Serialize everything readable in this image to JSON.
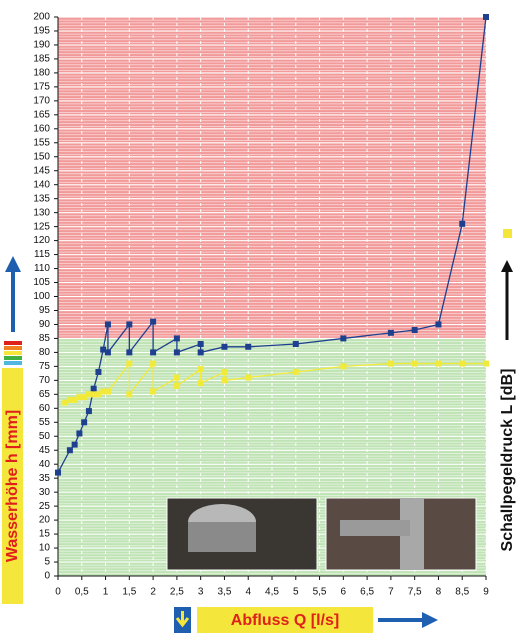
{
  "chart_data": {
    "type": "line",
    "y_label": "Wasserhöhe h [mm]",
    "y2_label": "Schallpegeldruck L [dB]",
    "x_label": "Abfluss Q [l/s]",
    "xlim": [
      0,
      9
    ],
    "ylim": [
      0,
      200
    ],
    "xticks": [
      0,
      {
        "value": 0.5,
        "label": "0,5"
      },
      1,
      {
        "value": 1.5,
        "label": "1,5"
      },
      2,
      {
        "value": 2.5,
        "label": "2,5"
      },
      3,
      {
        "value": 3.5,
        "label": "3,5"
      },
      4,
      {
        "value": 4.5,
        "label": "4,5"
      },
      5,
      {
        "value": 5.5,
        "label": "5,5"
      },
      6,
      {
        "value": 6.5,
        "label": "6,5"
      },
      7,
      {
        "value": 7.5,
        "label": "7,5"
      },
      8,
      {
        "value": 8.5,
        "label": "8,5"
      },
      9
    ],
    "yticks": [
      0,
      5,
      10,
      15,
      20,
      25,
      30,
      35,
      40,
      45,
      50,
      55,
      60,
      65,
      70,
      75,
      80,
      85,
      90,
      95,
      100,
      105,
      110,
      115,
      120,
      125,
      130,
      135,
      140,
      145,
      150,
      155,
      160,
      165,
      170,
      175,
      180,
      185,
      190,
      195,
      200
    ],
    "bands": [
      {
        "from": 0,
        "to": 85,
        "color": "#bfe3b4"
      },
      {
        "from": 85,
        "to": 200,
        "color": "#f29a9a"
      }
    ],
    "grid": true,
    "series": [
      {
        "name": "Wasserhöhe h",
        "color": "#1f3f8f",
        "x": [
          0,
          0.25,
          0.35,
          0.45,
          0.55,
          0.65,
          0.75,
          0.85,
          0.95,
          1.05,
          1.05,
          1.5,
          1.5,
          2,
          2,
          2.5,
          2.5,
          3,
          3,
          3.5,
          4,
          5,
          6,
          7,
          7.5,
          8,
          8.5,
          9
        ],
        "values": [
          37,
          45,
          47,
          51,
          55,
          59,
          67,
          73,
          81,
          90,
          80,
          90,
          80,
          91,
          80,
          85,
          80,
          83,
          80,
          82,
          82,
          83,
          85,
          87,
          88,
          90,
          126,
          200
        ]
      },
      {
        "name": "Schallpegeldruck L",
        "color": "#f2ea3a",
        "x": [
          0.15,
          0.25,
          0.35,
          0.45,
          0.55,
          0.65,
          0.75,
          0.85,
          0.95,
          1.05,
          1.5,
          1.5,
          2,
          2,
          2.5,
          2.5,
          3,
          3,
          3.5,
          3.5,
          4,
          5,
          6,
          7,
          7.5,
          8,
          8.5,
          9
        ],
        "values": [
          62,
          63,
          63,
          64,
          64,
          65,
          65,
          65,
          66,
          66,
          76,
          65,
          76,
          66,
          71,
          68,
          74,
          69,
          73,
          70,
          71,
          73,
          75,
          76,
          76,
          76,
          76,
          76
        ]
      }
    ]
  }
}
